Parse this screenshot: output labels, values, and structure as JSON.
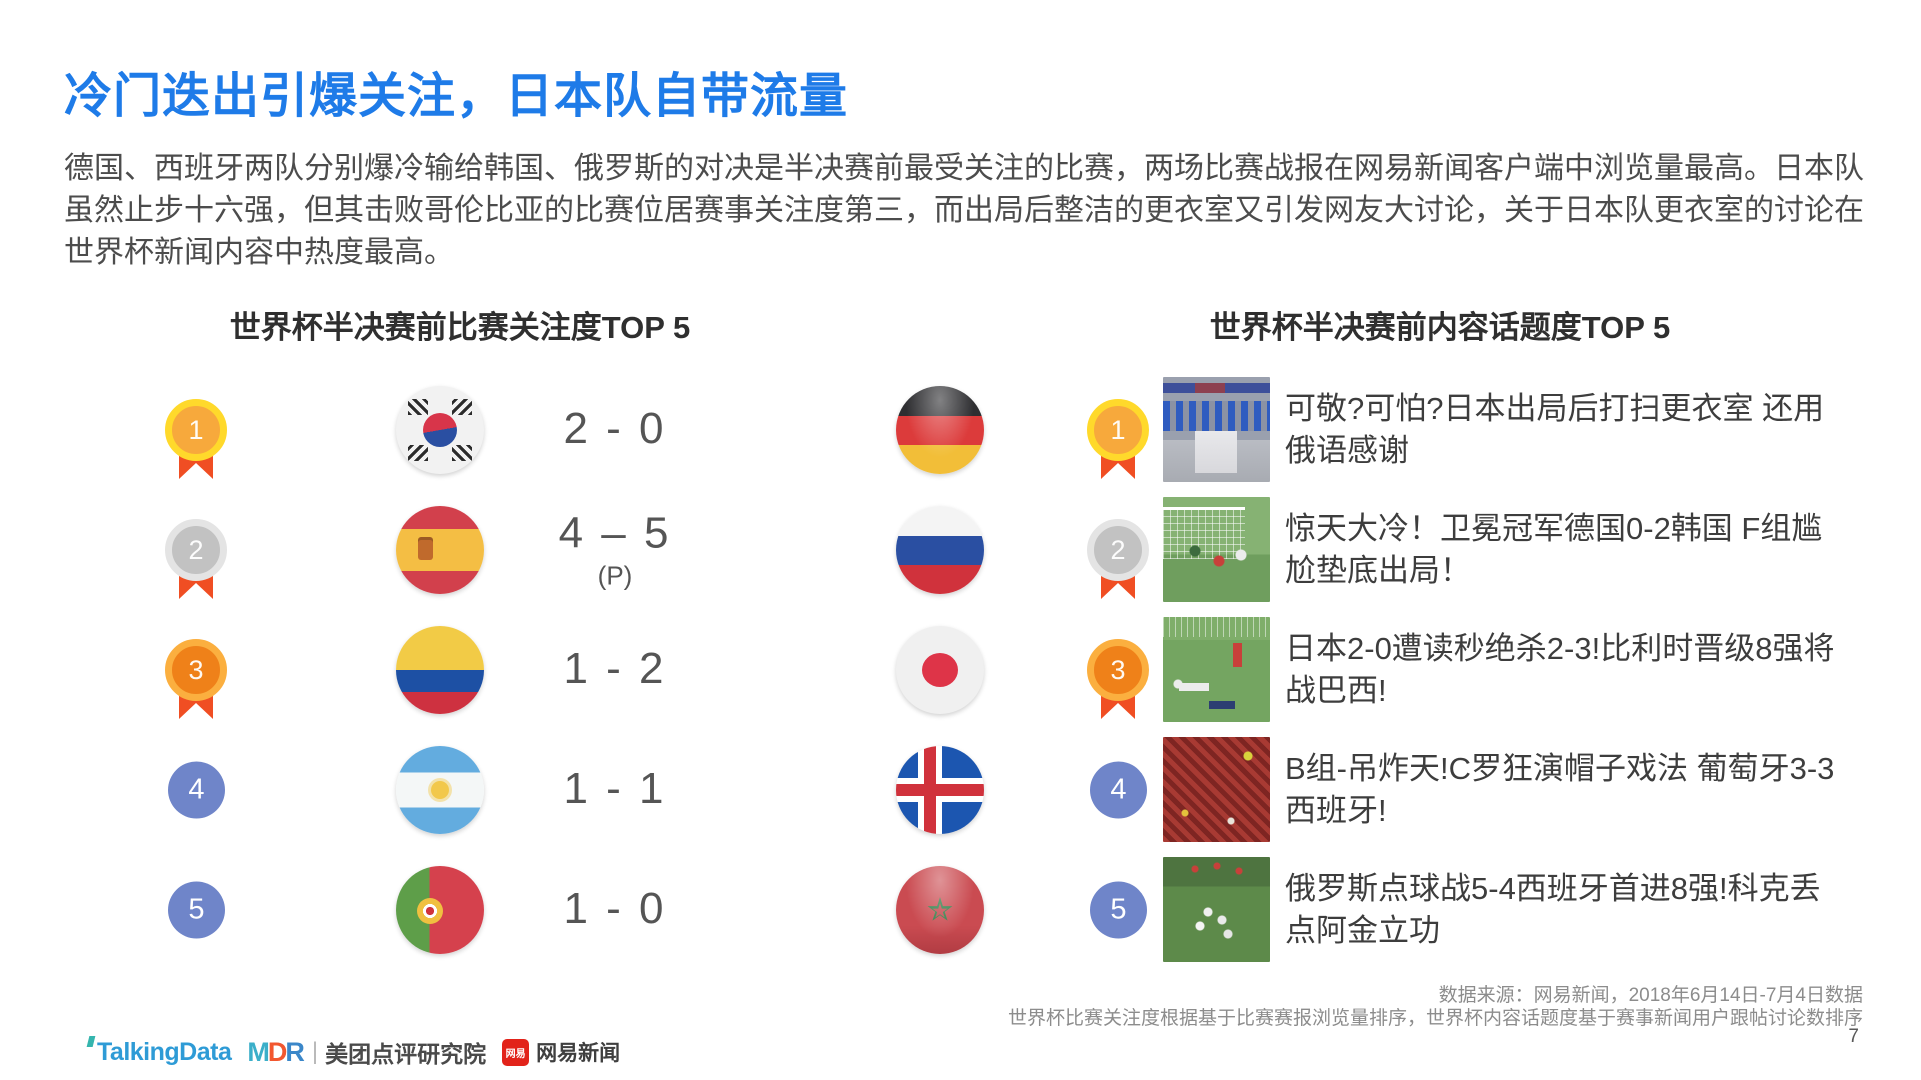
{
  "slide": {
    "title": "冷门迭出引爆关注，日本队自带流量",
    "intro": "德国、西班牙两队分别爆冷输给韩国、俄罗斯的对决是半决赛前最受关注的比赛，两场比赛战报在网易新闻客户端中浏览量最高。日本队虽然止步十六强，但其击败哥伦比亚的比赛位居赛事关注度第三，而出局后整洁的更衣室又引发网友大讨论，关于日本队更衣室的讨论在世界杯新闻内容中热度最高。"
  },
  "left": {
    "header": "世界杯半决赛前比赛关注度TOP 5",
    "rows": [
      {
        "rank": "1",
        "medal": "gold",
        "team_a": "South Korea",
        "score": "2 - 0",
        "note": "",
        "team_b": "Germany"
      },
      {
        "rank": "2",
        "medal": "silver",
        "team_a": "Spain",
        "score": "4 – 5",
        "note": "(P)",
        "team_b": "Russia"
      },
      {
        "rank": "3",
        "medal": "bronze",
        "team_a": "Colombia",
        "score": "1 - 2",
        "note": "",
        "team_b": "Japan"
      },
      {
        "rank": "4",
        "medal": "none",
        "team_a": "Argentina",
        "score": "1 - 1",
        "note": "",
        "team_b": "Iceland"
      },
      {
        "rank": "5",
        "medal": "none",
        "team_a": "Portugal",
        "score": "1 - 0",
        "note": "",
        "team_b": "Morocco"
      }
    ]
  },
  "right": {
    "header": "世界杯半决赛前内容话题度TOP 5",
    "rows": [
      {
        "rank": "1",
        "image": "japan-locker-room-photo",
        "headline": "可敬?可怕?日本出局后打扫更衣室 还用俄语感谢"
      },
      {
        "rank": "2",
        "image": "germany-korea-goal-photo",
        "headline": "惊天大冷！卫冕冠军德国0-2韩国 F组尴尬垫底出局！"
      },
      {
        "rank": "3",
        "image": "japan-belgium-match-photo",
        "headline": "日本2-0遭读秒绝杀2-3!比利时晋级8强将战巴西!"
      },
      {
        "rank": "4",
        "image": "portugal-spain-fans-photo",
        "headline": "B组-吊炸天!C罗狂演帽子戏法 葡萄牙3-3西班牙!"
      },
      {
        "rank": "5",
        "image": "russia-celebration-photo",
        "headline": "俄罗斯点球战5-4西班牙首进8强!科克丢点阿金立功"
      }
    ]
  },
  "footer": {
    "source_line1": "数据来源：网易新闻，2018年6月14日-7月4日数据",
    "source_line2": "世界杯比赛关注度根据基于比赛赛报浏览量排序，世界杯内容话题度基于赛事新闻用户跟帖讨论数排序",
    "page_number": "7",
    "logos": {
      "talkingdata": "TalkingData",
      "mdr": [
        "M",
        "D",
        "R"
      ],
      "mdr_sep": "|",
      "meituan": "美团点评研究院",
      "netease_badge": "网易",
      "netease": "网易新闻"
    }
  },
  "colors": {
    "title_blue": "#1E7BE8",
    "rank_badge_blue": "#6F85C9",
    "ribbon_red": "#F04E23",
    "medal_gold": "#FFD92B",
    "medal_silver": "#E4E4E4",
    "medal_bronze": "#FBAF3F"
  }
}
